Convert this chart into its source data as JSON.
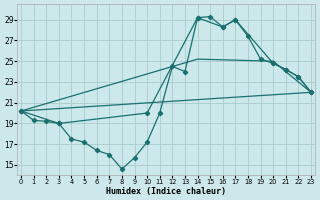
{
  "xlabel": "Humidex (Indice chaleur)",
  "bg_color": "#cce8ea",
  "grid_color": "#aacccc",
  "line_color": "#1a7070",
  "xlim": [
    -0.3,
    23.3
  ],
  "ylim": [
    14.0,
    30.5
  ],
  "xticks": [
    0,
    1,
    2,
    3,
    4,
    5,
    6,
    7,
    8,
    9,
    10,
    11,
    12,
    13,
    14,
    15,
    16,
    17,
    18,
    19,
    20,
    21,
    22,
    23
  ],
  "yticks": [
    15,
    17,
    19,
    21,
    23,
    25,
    27,
    29
  ],
  "line1_x": [
    0,
    1,
    2,
    3,
    4,
    5,
    6,
    7,
    8,
    9,
    10,
    11,
    12,
    13,
    14,
    15,
    16,
    17,
    18,
    19,
    20,
    21,
    22,
    23
  ],
  "line1_y": [
    20.2,
    19.3,
    19.2,
    19.0,
    17.5,
    17.2,
    16.4,
    16.0,
    14.6,
    15.7,
    17.2,
    20.0,
    24.5,
    24.0,
    29.2,
    29.3,
    28.3,
    29.0,
    27.4,
    25.2,
    24.8,
    24.2,
    23.5,
    22.0
  ],
  "line2_x": [
    0,
    3,
    10,
    14,
    16,
    17,
    20,
    21,
    22,
    23
  ],
  "line2_y": [
    20.2,
    19.0,
    20.0,
    29.2,
    28.3,
    29.0,
    24.8,
    24.2,
    23.5,
    22.0
  ],
  "line3_x": [
    0,
    23
  ],
  "line3_y": [
    20.2,
    22.0
  ],
  "line4_x": [
    0,
    14,
    20,
    23
  ],
  "line4_y": [
    20.2,
    25.2,
    25.0,
    22.0
  ],
  "lw": 0.9,
  "ms": 2.2
}
